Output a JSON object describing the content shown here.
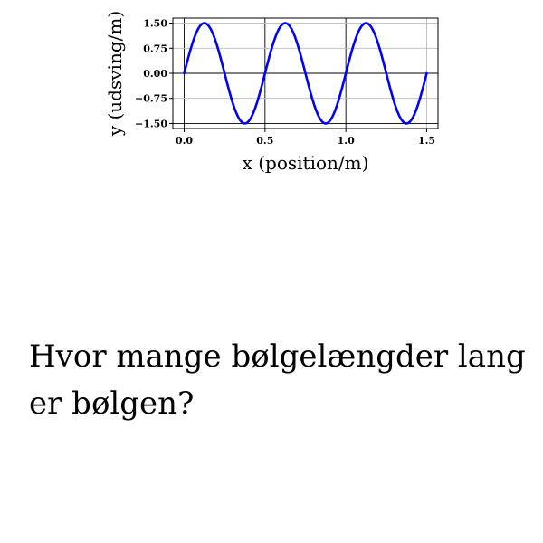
{
  "chart_data": {
    "type": "line",
    "title": "",
    "xlabel": "x (position/m)",
    "ylabel": "y (udsving/m)",
    "xlim": [
      -0.07,
      1.57
    ],
    "ylim": [
      -1.65,
      1.65
    ],
    "xticks": [
      0.0,
      0.5,
      1.0,
      1.5
    ],
    "xtick_labels": [
      "0.0",
      "0.5",
      "1.0",
      "1.5"
    ],
    "yticks": [
      -1.5,
      -0.75,
      0.0,
      0.75,
      1.5
    ],
    "ytick_labels": [
      "−1.50",
      "−0.75",
      "0.00",
      "0.75",
      "1.50"
    ],
    "grid": true,
    "series": [
      {
        "amplitude": 1.5,
        "wavelength": 0.5,
        "x_start": 0.0,
        "x_end": 1.5,
        "x": [
          0.0,
          0.125,
          0.25,
          0.375,
          0.5,
          0.625,
          0.75,
          0.875,
          1.0,
          1.125,
          1.25,
          1.375,
          1.5
        ],
        "y": [
          0.0,
          1.5,
          0.0,
          -1.5,
          0.0,
          1.5,
          0.0,
          -1.5,
          0.0,
          1.5,
          0.0,
          -1.5,
          0.0
        ],
        "color": "#0000ff"
      }
    ]
  },
  "question": {
    "text": "Hvor mange bølgelængder lang er bølgen?"
  }
}
